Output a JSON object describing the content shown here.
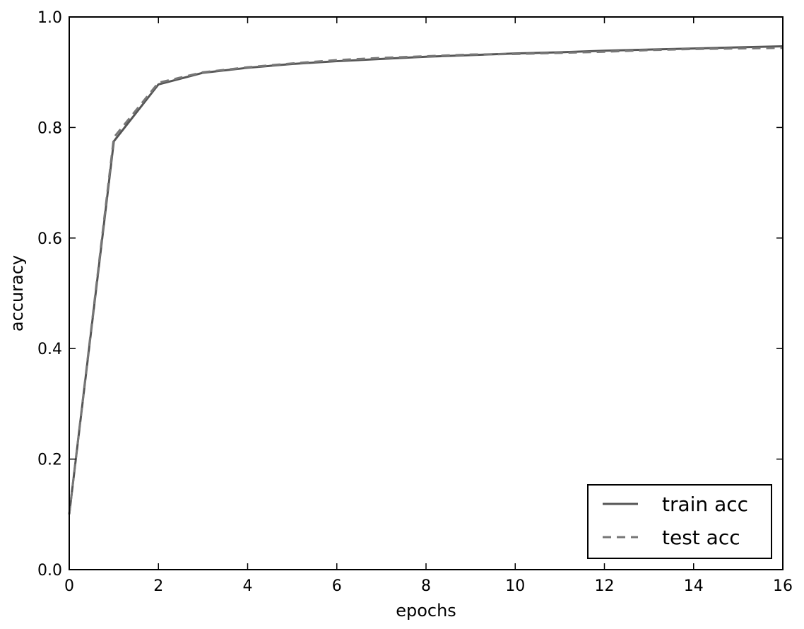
{
  "chart_data": {
    "type": "line",
    "xlabel": "epochs",
    "ylabel": "accuracy",
    "xlim": [
      0,
      16
    ],
    "ylim": [
      0.0,
      1.0
    ],
    "xticks": [
      0,
      2,
      4,
      6,
      8,
      10,
      12,
      14,
      16
    ],
    "yticks": [
      0.0,
      0.2,
      0.4,
      0.6,
      0.8,
      1.0
    ],
    "xtick_labels": [
      "0",
      "2",
      "4",
      "6",
      "8",
      "10",
      "12",
      "14",
      "16"
    ],
    "ytick_labels": [
      "0.0",
      "0.2",
      "0.4",
      "0.6",
      "0.8",
      "1.0"
    ],
    "grid": false,
    "legend_position": "bottom-right",
    "x": [
      0,
      1,
      2,
      3,
      4,
      5,
      6,
      7,
      8,
      9,
      10,
      11,
      12,
      13,
      14,
      15,
      16
    ],
    "series": [
      {
        "name": "train acc",
        "style": "solid",
        "color": "#555555",
        "values": [
          0.1,
          0.775,
          0.878,
          0.899,
          0.908,
          0.915,
          0.92,
          0.924,
          0.928,
          0.931,
          0.934,
          0.936,
          0.939,
          0.941,
          0.943,
          0.945,
          0.947
        ]
      },
      {
        "name": "test acc",
        "style": "dashed",
        "color": "#777777",
        "values": [
          0.1,
          0.782,
          0.881,
          0.9,
          0.909,
          0.916,
          0.922,
          0.926,
          0.929,
          0.932,
          0.933,
          0.935,
          0.937,
          0.94,
          0.942,
          0.943,
          0.944
        ]
      }
    ]
  }
}
